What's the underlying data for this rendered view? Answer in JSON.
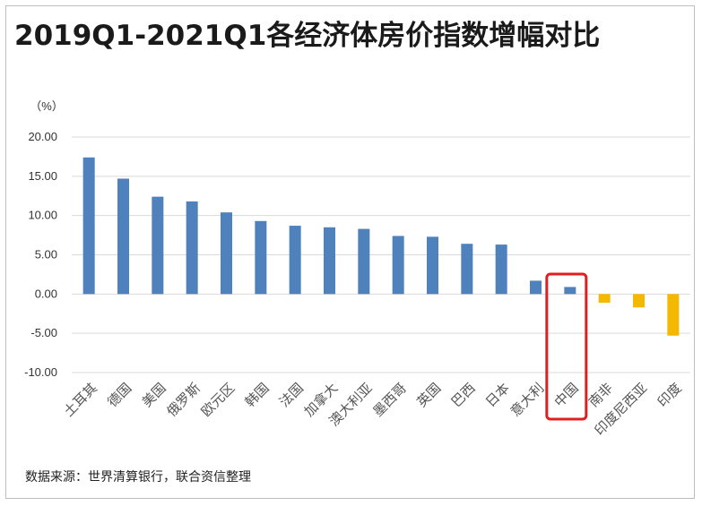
{
  "title": "2019Q1-2021Q1各经济体房价指数增幅对比",
  "source": "数据来源：世界清算银行，联合资信整理",
  "unit": "（%）",
  "colors": {
    "positive": "#4f81bd",
    "negative": "#f5b800",
    "highlight": "#e02020",
    "grid": "#d9d9d9"
  },
  "highlight_category": "中国",
  "chart_data": {
    "type": "bar",
    "title": "2019Q1-2021Q1各经济体房价指数增幅对比",
    "ylabel": "（%）",
    "xlabel": "",
    "ylim": [
      -10,
      20
    ],
    "yticks": [
      "20.00",
      "15.00",
      "10.00",
      "5.00",
      "0.00",
      "-5.00",
      "-10.00"
    ],
    "ytick_values": [
      20,
      15,
      10,
      5,
      0,
      -5,
      -10
    ],
    "grid": true,
    "categories": [
      "土耳其",
      "德国",
      "美国",
      "俄罗斯",
      "欧元区",
      "韩国",
      "法国",
      "加拿大",
      "澳大利亚",
      "墨西哥",
      "英国",
      "巴西",
      "日本",
      "意大利",
      "中国",
      "南非",
      "印度尼西亚",
      "印度"
    ],
    "values": [
      17.4,
      14.7,
      12.4,
      11.8,
      10.4,
      9.3,
      8.7,
      8.5,
      8.3,
      7.4,
      7.3,
      6.4,
      6.3,
      1.7,
      0.9,
      -1.1,
      -1.7,
      -5.3
    ]
  }
}
